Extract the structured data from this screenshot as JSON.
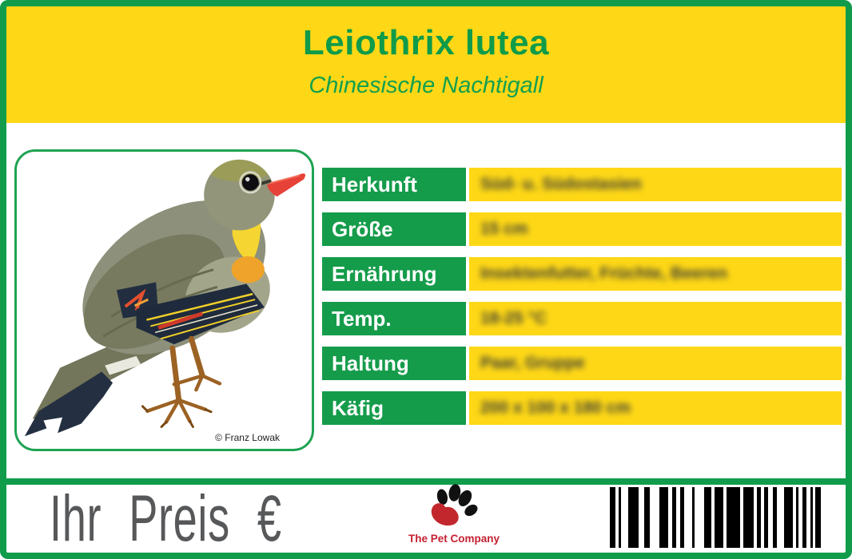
{
  "header": {
    "title": "Leiothrix lutea",
    "subtitle": "Chinesische Nachtigall"
  },
  "photo": {
    "credit": "© Franz Lowak"
  },
  "specs": {
    "rows": [
      {
        "label": "Herkunft",
        "value": "Süd- u. Südostasien"
      },
      {
        "label": "Größe",
        "value": "15 cm"
      },
      {
        "label": "Ernährung",
        "value": "Insektenfutter, Früchte, Beeren"
      },
      {
        "label": "Temp.",
        "value": "18-25 °C"
      },
      {
        "label": "Haltung",
        "value": "Paar, Gruppe"
      },
      {
        "label": "Käfig",
        "value": "200 x 100 x 180 cm"
      }
    ]
  },
  "footer": {
    "price_label": "Ihr Preis €",
    "brand": "The Pet Company",
    "logo_icon": "paw-icon"
  },
  "colors": {
    "green": "#109C4B",
    "table_green": "#159C4B",
    "yellow": "#FED816",
    "title_green": "#0F9B49",
    "price_gray": "#57585A",
    "brand_red": "#C42032",
    "barcode_black": "#000000"
  },
  "barcode": {
    "bars": [
      [
        0,
        7
      ],
      [
        11,
        3
      ],
      [
        23,
        13
      ],
      [
        43,
        7
      ],
      [
        62,
        11
      ],
      [
        78,
        5
      ],
      [
        88,
        5
      ],
      [
        103,
        3
      ],
      [
        118,
        9
      ],
      [
        131,
        11
      ],
      [
        146,
        17
      ],
      [
        167,
        13
      ],
      [
        184,
        5
      ],
      [
        193,
        5
      ],
      [
        204,
        5
      ],
      [
        218,
        11
      ],
      [
        233,
        3
      ],
      [
        241,
        5
      ],
      [
        251,
        3
      ],
      [
        257,
        7
      ]
    ]
  }
}
